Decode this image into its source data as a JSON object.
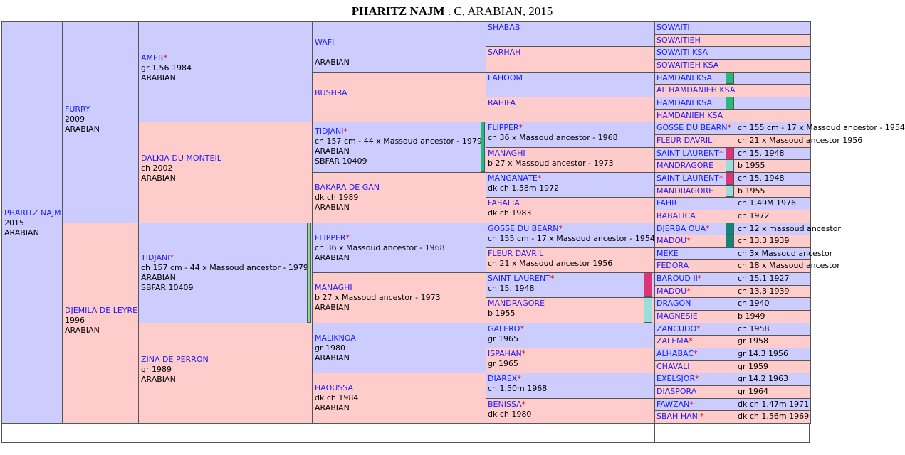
{
  "title": {
    "name": "PHARITZ NAJM",
    "rest": " . C, ARABIAN, 2015"
  },
  "gen1": {
    "name": "PHARITZ NAJM",
    "lines": [
      "2015",
      "ARABIAN"
    ]
  },
  "gen2": [
    {
      "name": "FURRY",
      "lines": [
        "2009",
        "ARABIAN"
      ]
    },
    {
      "name": "DJEMILA DE LEYRE",
      "lines": [
        "1996",
        "ARABIAN"
      ]
    }
  ],
  "gen3": [
    {
      "name": "AMER",
      "star": true,
      "lines": [
        "gr 1.56 1984",
        "ARABIAN"
      ]
    },
    {
      "name": "DALKIA DU MONTEIL",
      "lines": [
        "ch 2002",
        "ARABIAN"
      ]
    },
    {
      "name": "TIDJANI",
      "star": true,
      "lines": [
        "ch 157 cm - 44 x Massoud ancestor - 1979",
        "ARABIAN",
        "SBFAR 10409"
      ]
    },
    {
      "name": "ZINA DE PERRON",
      "lines": [
        "gr 1989",
        "ARABIAN"
      ]
    }
  ],
  "gen4": [
    {
      "name": "WAFI",
      "lines": [
        "",
        "ARABIAN"
      ]
    },
    {
      "name": "BUSHRA",
      "lines": []
    },
    {
      "name": "TIDJANI",
      "star": true,
      "lines": [
        "ch 157 cm - 44 x Massoud ancestor - 1979",
        "ARABIAN",
        "SBFAR 10409"
      ]
    },
    {
      "name": "BAKARA DE GAN",
      "lines": [
        "dk ch 1989",
        "ARABIAN"
      ]
    },
    {
      "name": "FLIPPER",
      "star": true,
      "lines": [
        "ch 36 x Massoud ancestor - 1968",
        "ARABIAN"
      ]
    },
    {
      "name": "MANAGHI",
      "lines": [
        "b 27 x Massoud ancestor - 1973",
        "ARABIAN"
      ]
    },
    {
      "name": "MALIKNOA",
      "lines": [
        "gr 1980",
        "ARABIAN"
      ]
    },
    {
      "name": "HAOUSSA",
      "lines": [
        "dk ch 1984",
        "ARABIAN"
      ]
    }
  ],
  "gen5": [
    {
      "name": "SHABAB",
      "lines": []
    },
    {
      "name": "SARHAH",
      "lines": []
    },
    {
      "name": "LAHOOM",
      "lines": []
    },
    {
      "name": "RAHIFA",
      "lines": []
    },
    {
      "name": "FLIPPER",
      "star": true,
      "lines": [
        "ch 36 x Massoud ancestor - 1968"
      ]
    },
    {
      "name": "MANAGHI",
      "lines": [
        "b 27 x Massoud ancestor - 1973"
      ]
    },
    {
      "name": "MANGANATE",
      "star": true,
      "lines": [
        "dk ch 1.58m 1972"
      ]
    },
    {
      "name": "FABALIA",
      "lines": [
        "dk ch 1983"
      ]
    },
    {
      "name": "GOSSE DU BEARN",
      "star": true,
      "lines": [
        "ch 155 cm - 17 x Massoud ancestor - 1954"
      ]
    },
    {
      "name": "FLEUR DAVRIL",
      "lines": [
        "ch 21 x Massoud ancestor 1956"
      ]
    },
    {
      "name": "SAINT LAURENT",
      "star": true,
      "lines": [
        "ch 15. 1948"
      ]
    },
    {
      "name": "MANDRAGORE",
      "lines": [
        "b 1955"
      ]
    },
    {
      "name": "GALERO",
      "star": true,
      "lines": [
        "gr 1965"
      ]
    },
    {
      "name": "ISPAHAN",
      "star": true,
      "lines": [
        "gr 1965"
      ]
    },
    {
      "name": "DIAREX",
      "star": true,
      "lines": [
        "ch 1.50m 1968"
      ]
    },
    {
      "name": "BENISSA",
      "star": true,
      "lines": [
        "dk ch 1980"
      ]
    }
  ],
  "gen6": [
    {
      "name": "SOWAITI",
      "info": ""
    },
    {
      "name": "SOWAITIEH",
      "info": ""
    },
    {
      "name": "SOWAITI KSA",
      "info": ""
    },
    {
      "name": "SOWAITIEH KSA",
      "info": ""
    },
    {
      "name": "HAMDANI KSA",
      "info": ""
    },
    {
      "name": "AL HAMDANIEH KSA",
      "info": ""
    },
    {
      "name": "HAMDANI KSA",
      "info": ""
    },
    {
      "name": "HAMDANIEH KSA",
      "info": ""
    },
    {
      "name": "GOSSE DU BEARN",
      "star": true,
      "info": "ch 155 cm - 17 x Massoud ancestor - 1954"
    },
    {
      "name": "FLEUR DAVRIL",
      "info": "ch 21 x Massoud ancestor 1956"
    },
    {
      "name": "SAINT LAURENT",
      "star": true,
      "info": "ch 15. 1948"
    },
    {
      "name": "MANDRAGORE",
      "info": "b 1955"
    },
    {
      "name": "SAINT LAURENT",
      "star": true,
      "info": "ch 15. 1948"
    },
    {
      "name": "MANDRAGORE",
      "info": "b 1955"
    },
    {
      "name": "FAHR",
      "info": "ch 1.49M 1976"
    },
    {
      "name": "BABALICA",
      "info": "ch 1972"
    },
    {
      "name": "DJERBA OUA",
      "star": true,
      "info": "ch 12 x massoud ancestor"
    },
    {
      "name": "MADOU",
      "star": true,
      "info": "ch 13.3 1939"
    },
    {
      "name": "MEKE",
      "info": "ch 3x Massoud ancestor"
    },
    {
      "name": "FEDORA",
      "info": "ch 18 x Massoud ancestor"
    },
    {
      "name": "BAROUD II",
      "star": true,
      "info": "ch 15.1 1927"
    },
    {
      "name": "MADOU",
      "star": true,
      "info": "ch 13.3 1939"
    },
    {
      "name": "DRAGON",
      "info": "ch 1940"
    },
    {
      "name": "MAGNESIE",
      "info": "b 1949"
    },
    {
      "name": "ZANCUDO",
      "star": true,
      "info": "ch 1958"
    },
    {
      "name": "ZALEMA",
      "star": true,
      "info": "gr 1958"
    },
    {
      "name": "ALHABAC",
      "star": true,
      "info": "gr 14.3 1956"
    },
    {
      "name": "CHAVALI",
      "info": "gr 1959"
    },
    {
      "name": "EXELSJOR",
      "star": true,
      "info": "gr 14.2 1963"
    },
    {
      "name": "DIASPORA",
      "info": "gr 1964"
    },
    {
      "name": "FAWZAN",
      "star": true,
      "info": "dk ch 1.47m 1971"
    },
    {
      "name": "SBAH HANI",
      "star": true,
      "info": "dk ch 1.56m 1969"
    }
  ],
  "colors": {
    "male": "#ccccff",
    "female": "#ffcccc",
    "name": "#1a1aff",
    "star": "#ee0000",
    "mark_green": "#22bb77",
    "mark_teal": "#118877",
    "mark_magenta": "#dd3377",
    "mark_cyan": "#99dddd",
    "mark_light_green": "#88dd88"
  }
}
